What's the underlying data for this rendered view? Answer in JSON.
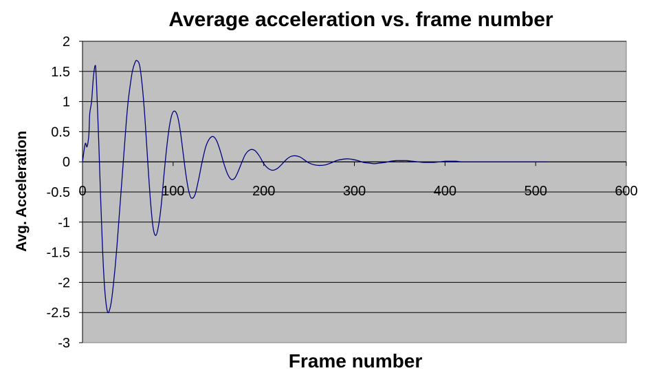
{
  "chart_data": {
    "type": "line",
    "title": "Average acceleration vs. frame number",
    "xlabel": "Frame number",
    "ylabel": "Avg. Acceleration",
    "xlim": [
      0,
      600
    ],
    "ylim": [
      -3,
      2
    ],
    "x_ticks": [
      0,
      100,
      200,
      300,
      400,
      500,
      600
    ],
    "y_ticks": [
      2,
      1.5,
      1,
      0.5,
      0,
      -0.5,
      -1,
      -1.5,
      -2,
      -2.5,
      -3
    ],
    "grid": "horizontal",
    "legend": "none",
    "colors": {
      "plot_background": "#c0c0c0",
      "line": "#000080",
      "gridline": "#000000"
    },
    "series": [
      {
        "x": [
          0,
          3,
          5,
          7,
          8,
          10,
          12,
          14,
          15,
          16,
          18,
          20,
          22,
          24,
          26,
          28,
          30,
          32,
          34,
          36,
          38,
          40,
          42,
          45,
          48,
          50,
          52,
          55,
          58,
          60,
          63,
          66,
          69,
          72,
          75,
          78,
          81,
          84,
          87,
          90,
          93,
          96,
          99,
          102,
          105,
          108,
          111,
          114,
          117,
          120,
          124,
          128,
          132,
          136,
          140,
          144,
          148,
          152,
          156,
          160,
          164,
          168,
          172,
          176,
          180,
          185,
          190,
          195,
          200,
          205,
          210,
          215,
          220,
          225,
          230,
          235,
          240,
          245,
          250,
          256,
          262,
          268,
          274,
          280,
          286,
          292,
          298,
          304,
          310,
          316,
          322,
          328,
          334,
          340,
          346,
          352,
          358,
          364,
          370,
          376,
          382,
          388,
          394,
          400,
          406,
          412,
          418,
          424,
          430,
          436,
          442,
          448,
          454,
          460,
          466,
          472,
          478,
          484,
          490,
          496,
          502,
          508,
          512
        ],
        "values": [
          0.0,
          0.3,
          0.25,
          0.45,
          0.8,
          1.0,
          1.4,
          1.6,
          1.45,
          1.1,
          0.3,
          -0.6,
          -1.4,
          -2.0,
          -2.35,
          -2.5,
          -2.45,
          -2.3,
          -2.05,
          -1.75,
          -1.4,
          -1.0,
          -0.6,
          0.0,
          0.6,
          0.95,
          1.2,
          1.5,
          1.65,
          1.68,
          1.6,
          1.25,
          0.7,
          0.0,
          -0.65,
          -1.1,
          -1.22,
          -1.05,
          -0.7,
          -0.2,
          0.25,
          0.6,
          0.8,
          0.84,
          0.75,
          0.5,
          0.15,
          -0.2,
          -0.47,
          -0.6,
          -0.55,
          -0.3,
          0.0,
          0.25,
          0.38,
          0.42,
          0.35,
          0.18,
          -0.03,
          -0.2,
          -0.29,
          -0.27,
          -0.15,
          0.0,
          0.13,
          0.2,
          0.19,
          0.1,
          -0.03,
          -0.11,
          -0.14,
          -0.11,
          -0.04,
          0.04,
          0.09,
          0.1,
          0.08,
          0.03,
          -0.02,
          -0.05,
          -0.06,
          -0.05,
          -0.02,
          0.02,
          0.04,
          0.05,
          0.04,
          0.02,
          -0.01,
          -0.02,
          -0.03,
          -0.02,
          -0.01,
          0.01,
          0.02,
          0.02,
          0.02,
          0.01,
          0.0,
          -0.01,
          -0.01,
          -0.01,
          0.0,
          0.01,
          0.01,
          0.01,
          0.0,
          0.0,
          0.0,
          0.0,
          0.0,
          0.0,
          0.0,
          0.0,
          0.0,
          0.0,
          0.0,
          0.0,
          0.0,
          0.0,
          0.0,
          0.0,
          0.0
        ]
      }
    ]
  }
}
